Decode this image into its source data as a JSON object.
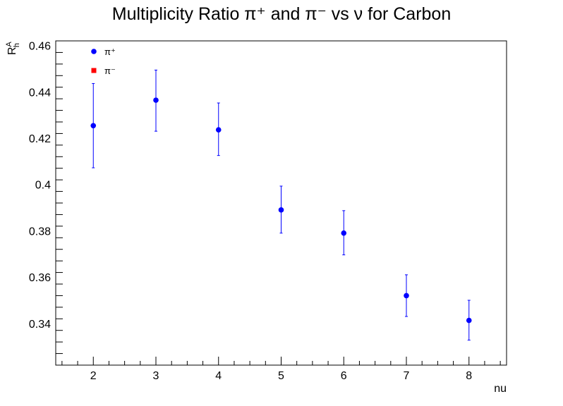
{
  "chart_data": {
    "type": "scatter",
    "title": "Multiplicity Ratio π⁺ and π⁻ vs ν for Carbon",
    "xlabel": "nu",
    "ylabel": "R_h^A",
    "xlim": [
      1.4,
      8.6
    ],
    "ylim": [
      0.322,
      0.462
    ],
    "x_ticks": [
      2,
      3,
      4,
      5,
      6,
      7,
      8
    ],
    "x_tick_labels": [
      "2",
      "3",
      "4",
      "5",
      "6",
      "7",
      "8"
    ],
    "y_ticks": [
      0.34,
      0.36,
      0.38,
      0.4,
      0.42,
      0.44,
      0.46
    ],
    "y_tick_labels": [
      "0.34",
      "0.36",
      "0.38",
      "0.4",
      "0.42",
      "0.44",
      "0.46"
    ],
    "legend_position": "top-left",
    "series": [
      {
        "name": "π⁺",
        "color": "#0000ff",
        "marker": "circle",
        "x": [
          2,
          3,
          4,
          5,
          6,
          7,
          8
        ],
        "y": [
          0.4254,
          0.4364,
          0.4236,
          0.389,
          0.379,
          0.352,
          0.3413
        ],
        "yerr_low": [
          0.0182,
          0.0134,
          0.0111,
          0.01,
          0.0094,
          0.009,
          0.0085
        ],
        "yerr_high": [
          0.0182,
          0.013,
          0.0116,
          0.0103,
          0.0097,
          0.009,
          0.0087
        ]
      },
      {
        "name": "π⁻",
        "color": "#ff0000",
        "marker": "square",
        "x": [],
        "y": []
      }
    ]
  }
}
